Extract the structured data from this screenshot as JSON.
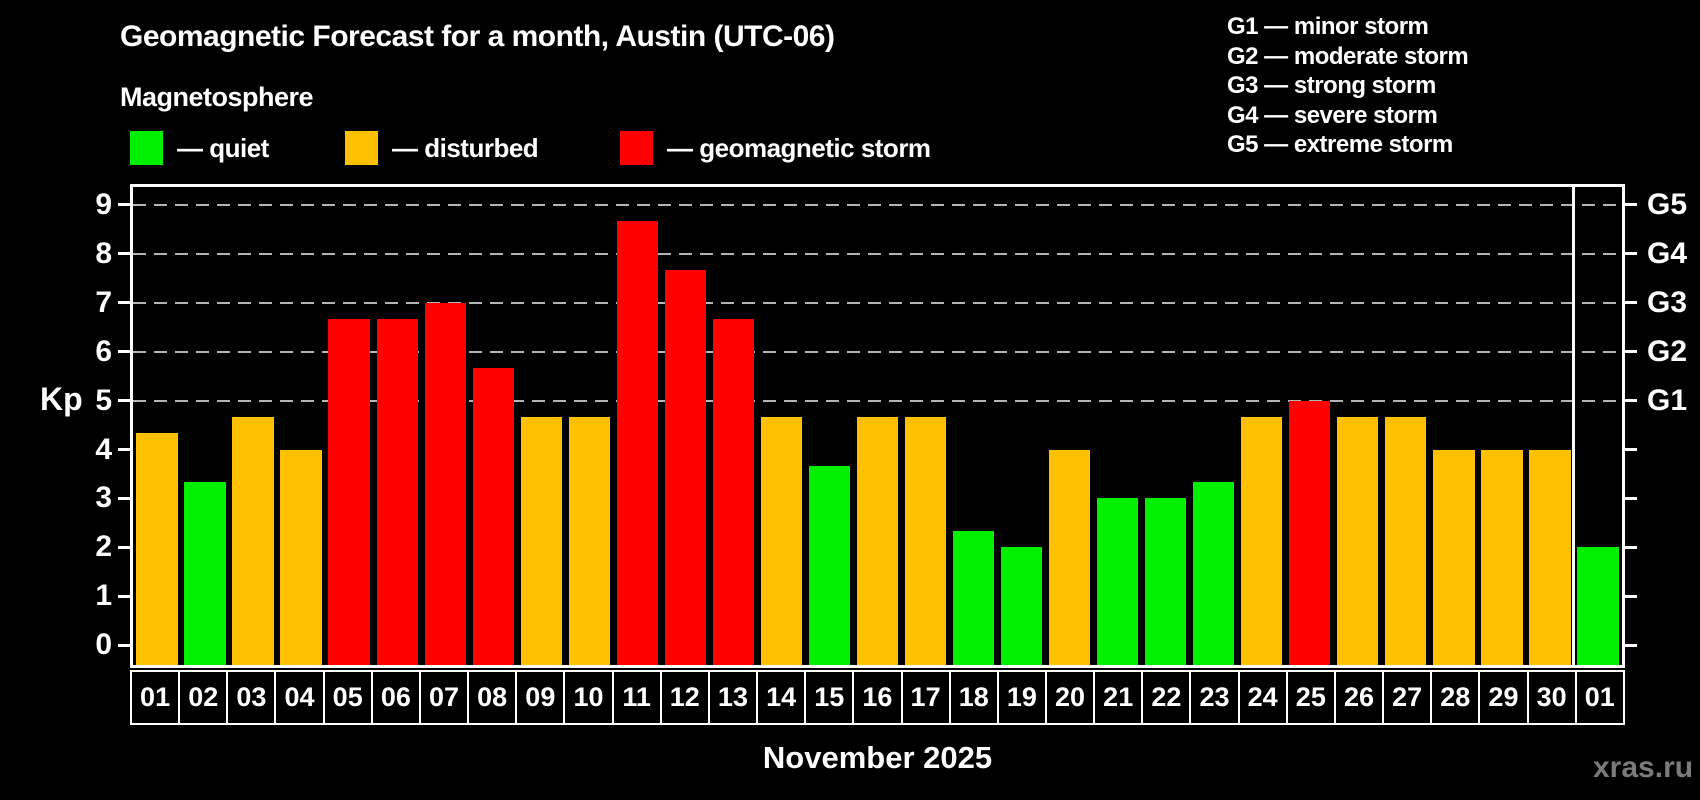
{
  "header": {
    "title": "Geomagnetic Forecast for a month, Austin (UTC-06)",
    "subtitle": "Magnetosphere"
  },
  "legend": {
    "quiet_label": "— quiet",
    "disturbed_label": "— disturbed",
    "storm_label": "— geomagnetic storm"
  },
  "g_scale_legend": [
    "G1 — minor storm",
    "G2 — moderate storm",
    "G3 — strong storm",
    "G4 — severe storm",
    "G5 — extreme storm"
  ],
  "axes": {
    "kp_label": "Kp",
    "kp_ticks": [
      0,
      1,
      2,
      3,
      4,
      5,
      6,
      7,
      8,
      9
    ],
    "g_ticks": [
      {
        "label": "G1",
        "value": 5
      },
      {
        "label": "G2",
        "value": 6
      },
      {
        "label": "G3",
        "value": 7
      },
      {
        "label": "G4",
        "value": 8
      },
      {
        "label": "G5",
        "value": 9
      }
    ]
  },
  "chart_data": {
    "type": "bar",
    "title": "Geomagnetic Forecast for a month, Austin (UTC-06)",
    "xlabel": "November 2025",
    "ylabel": "Kp",
    "ylim": [
      -0.4,
      9.36
    ],
    "gridlines_at": [
      5,
      6,
      7,
      8,
      9
    ],
    "grid": "dashed horizontal at storm levels only",
    "legend_position": "above chart",
    "categories": [
      "01",
      "02",
      "03",
      "04",
      "05",
      "06",
      "07",
      "08",
      "09",
      "10",
      "11",
      "12",
      "13",
      "14",
      "15",
      "16",
      "17",
      "18",
      "19",
      "20",
      "21",
      "22",
      "23",
      "24",
      "25",
      "26",
      "27",
      "28",
      "29",
      "30",
      "01"
    ],
    "values": [
      4.33,
      3.33,
      4.67,
      4.0,
      6.67,
      6.67,
      7.0,
      5.67,
      4.67,
      4.67,
      8.67,
      7.67,
      6.67,
      4.67,
      3.67,
      4.67,
      4.67,
      2.33,
      2.0,
      4.0,
      3.0,
      3.0,
      3.33,
      4.67,
      5.0,
      4.67,
      4.67,
      4.0,
      4.0,
      4.0,
      2.0
    ],
    "statuses": [
      "disturbed",
      "quiet",
      "disturbed",
      "disturbed",
      "storm",
      "storm",
      "storm",
      "storm",
      "disturbed",
      "disturbed",
      "storm",
      "storm",
      "storm",
      "disturbed",
      "quiet",
      "disturbed",
      "disturbed",
      "quiet",
      "quiet",
      "disturbed",
      "quiet",
      "quiet",
      "quiet",
      "disturbed",
      "storm",
      "disturbed",
      "disturbed",
      "disturbed",
      "disturbed",
      "disturbed",
      "quiet"
    ],
    "separator_after_index": 29,
    "month_label": "November 2025"
  },
  "colors": {
    "quiet": "#00f000",
    "disturbed": "#ffc000",
    "storm": "#ff0000",
    "background": "#000000",
    "axis": "#ffffff",
    "gridline": "#b4b4b4",
    "watermark_text_color": "#7b7b7b"
  },
  "watermark": "xras.ru"
}
